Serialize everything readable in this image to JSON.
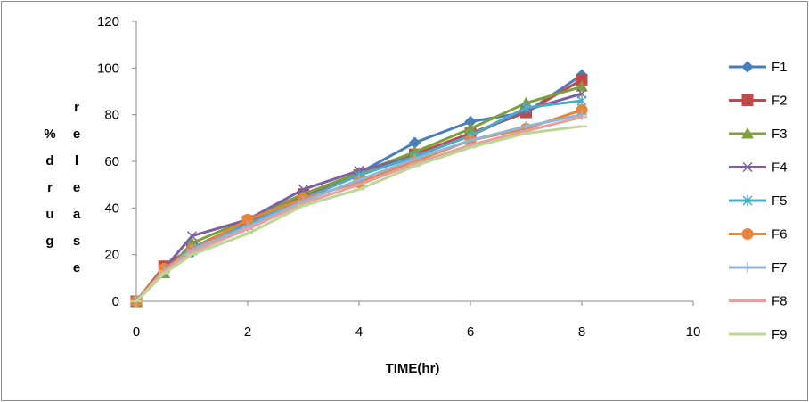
{
  "chart_data": {
    "type": "line",
    "xlabel": "TIME(hr)",
    "ylabel": "% drug release",
    "ylabel_columns": [
      [
        "%",
        "d",
        "r",
        "u",
        "g"
      ],
      [
        "r",
        "e",
        "l",
        "e",
        "a",
        "s",
        "e"
      ]
    ],
    "xlim": [
      0,
      10
    ],
    "ylim": [
      0,
      120
    ],
    "x_ticks": [
      "0",
      "2",
      "4",
      "6",
      "8",
      "10"
    ],
    "y_ticks": [
      "0",
      "20",
      "40",
      "60",
      "80",
      "100",
      "120"
    ],
    "grid": false,
    "legend_position": "right",
    "x": [
      0,
      0.5,
      1,
      2,
      3,
      4,
      5,
      6,
      7,
      8
    ],
    "series": [
      {
        "name": "F1",
        "color": "#4a7ebb",
        "marker": "diamond",
        "values": [
          0,
          15,
          21,
          33,
          45,
          55,
          68,
          77,
          81,
          97
        ]
      },
      {
        "name": "F2",
        "color": "#be4b48",
        "marker": "square",
        "values": [
          0,
          15,
          23,
          34,
          46,
          54,
          63,
          72,
          81,
          95
        ]
      },
      {
        "name": "F3",
        "color": "#7f9f3f",
        "marker": "triangle",
        "values": [
          0,
          12,
          25,
          35,
          46,
          55,
          64,
          74,
          85,
          92
        ]
      },
      {
        "name": "F4",
        "color": "#7d60a0",
        "marker": "x",
        "values": [
          0,
          14,
          28,
          35,
          48,
          56,
          62,
          71,
          82,
          89
        ]
      },
      {
        "name": "F5",
        "color": "#4bacc6",
        "marker": "star",
        "values": [
          0,
          13,
          23,
          33,
          44,
          54,
          62,
          71,
          83,
          86
        ]
      },
      {
        "name": "F6",
        "color": "#e8853b",
        "marker": "circle",
        "values": [
          0,
          14,
          22,
          35,
          44,
          51,
          60,
          69,
          74,
          82
        ]
      },
      {
        "name": "F7",
        "color": "#94b3d9",
        "marker": "plus",
        "values": [
          0,
          13,
          22,
          32,
          43,
          52,
          61,
          69,
          75,
          80
        ]
      },
      {
        "name": "F8",
        "color": "#e6a0a0",
        "marker": "dash",
        "values": [
          0,
          13,
          21,
          31,
          42,
          50,
          59,
          67,
          73,
          79
        ]
      },
      {
        "name": "F9",
        "color": "#bcd696",
        "marker": "dash",
        "values": [
          0,
          12,
          20,
          29,
          41,
          48,
          58,
          66,
          72,
          75
        ]
      }
    ]
  }
}
